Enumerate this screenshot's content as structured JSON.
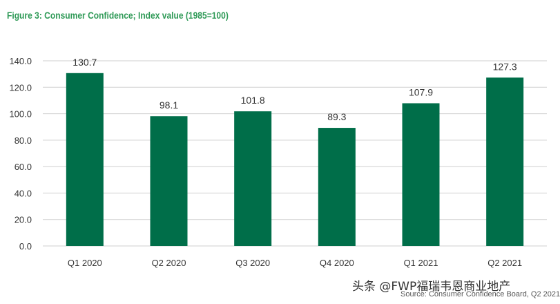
{
  "chart_data": {
    "type": "bar",
    "title": "Figure 3: Consumer Confidence; Index value (1985=100)",
    "categories": [
      "Q1 2020",
      "Q2 2020",
      "Q3 2020",
      "Q4 2020",
      "Q1 2021",
      "Q2 2021"
    ],
    "values": [
      130.7,
      98.1,
      101.8,
      89.3,
      107.9,
      127.3
    ],
    "value_labels": [
      "130.7",
      "98.1",
      "101.8",
      "89.3",
      "107.9",
      "127.3"
    ],
    "y_ticks": [
      "0.0",
      "20.0",
      "40.0",
      "60.0",
      "80.0",
      "100.0",
      "120.0",
      "140.0"
    ],
    "y_tick_values": [
      0,
      20,
      40,
      60,
      80,
      100,
      120,
      140
    ],
    "ylim": [
      0,
      140
    ],
    "xlabel": "",
    "ylabel": "",
    "grid": true,
    "bar_color": "#006e49",
    "title_color": "#2f9a57"
  },
  "watermark": "头条 @FWP福瑞韦恩商业地产",
  "source": "Source: Consumer Confidence Board, Q2 2021"
}
